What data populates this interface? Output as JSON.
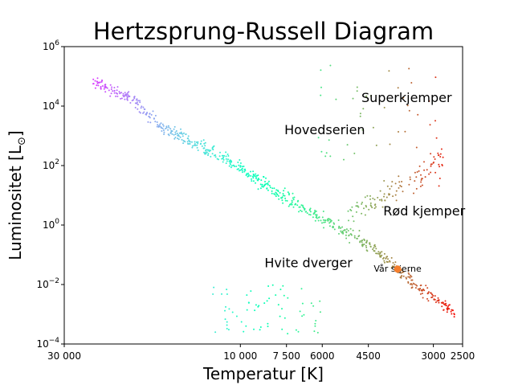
{
  "chart_data": {
    "type": "scatter",
    "title": "Hertzsprung-Russell Diagram",
    "xlabel": "Temperatur [K]",
    "ylabel": "Luminositet [L",
    "ylabel_sub": "⊙",
    "ylabel_close": "]",
    "x_scale": "log",
    "x_inverted": true,
    "xlim": [
      30000,
      2500
    ],
    "x_tick_values": [
      30000,
      10000,
      7500,
      6000,
      4500,
      3000,
      2500
    ],
    "x_tick_labels": [
      "30 000",
      "10 000",
      "7 500",
      "6000",
      "4500",
      "3000",
      "2500"
    ],
    "y_scale": "log",
    "ylim": [
      0.0001,
      1000000
    ],
    "y_tick_exponents": [
      -4,
      -2,
      0,
      2,
      4,
      6
    ],
    "y_tick_base": "10",
    "grid": false,
    "colormap": "rainbow",
    "annotations": [
      {
        "text": "Superkjemper",
        "x": 4700,
        "y": 18000,
        "size": "large"
      },
      {
        "text": "Hovedserien",
        "x": 7600,
        "y": 1500,
        "size": "large"
      },
      {
        "text": "Rød kjemper",
        "x": 4100,
        "y": 2.8,
        "size": "large"
      },
      {
        "text": "Hvite dverger",
        "x": 8600,
        "y": 0.05,
        "size": "large"
      },
      {
        "text": "Vår stjerne",
        "x": 4350,
        "y": 0.033,
        "size": "small"
      }
    ],
    "highlight": {
      "name": "Vår stjerne",
      "x": 3750,
      "y": 0.033,
      "color": "#f57f2d"
    },
    "series": [
      {
        "group": "main-sequence",
        "points_approx": 700,
        "x_range": [
          25000,
          2600
        ],
        "y_range": [
          0.0012,
          100000
        ]
      },
      {
        "group": "red-giants",
        "points_approx": 110,
        "x_range": [
          5200,
          2700
        ],
        "y_range": [
          1,
          300
        ]
      },
      {
        "group": "supergiants",
        "points_approx": 45,
        "x_range": [
          6200,
          2650
        ],
        "y_range": [
          150,
          300000
        ]
      },
      {
        "group": "white-dwarfs",
        "points_approx": 65,
        "x_range": [
          12000,
          6000
        ],
        "y_range": [
          0.0002,
          0.01
        ]
      }
    ]
  }
}
